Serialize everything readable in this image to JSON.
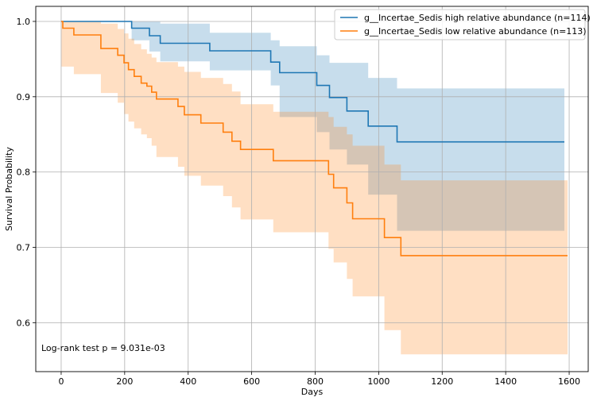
{
  "chart_data": {
    "type": "line",
    "subtype": "kaplan-meier",
    "title": "",
    "xlabel": "Days",
    "ylabel": "Survival Probability",
    "xlim": [
      -80,
      1660
    ],
    "ylim": [
      0.535,
      1.02
    ],
    "xticks": [
      0,
      200,
      400,
      600,
      800,
      1000,
      1200,
      1400,
      1600
    ],
    "yticks": [
      0.6,
      0.7,
      0.8,
      0.9,
      1.0
    ],
    "xtick_labels": [
      "0",
      "200",
      "400",
      "600",
      "800",
      "1000",
      "1200",
      "1400",
      "1600"
    ],
    "ytick_labels": [
      "0.6",
      "0.7",
      "0.8",
      "0.9",
      "1.0"
    ],
    "grid": true,
    "legend_position": "top-right",
    "annotation": "Log-rank test p = 9.031e-03",
    "series": [
      {
        "name": "g__Incertae_Sedis high relative abundance (n=114)",
        "color": "#1f77b4",
        "band_color": "#1f77b4",
        "x_end": 1585,
        "steps": [
          [
            0,
            1.0
          ],
          [
            222,
            0.991
          ],
          [
            278,
            0.981
          ],
          [
            312,
            0.971
          ],
          [
            468,
            0.961
          ],
          [
            660,
            0.946
          ],
          [
            688,
            0.932
          ],
          [
            805,
            0.915
          ],
          [
            845,
            0.899
          ],
          [
            900,
            0.881
          ],
          [
            967,
            0.861
          ],
          [
            1058,
            0.84
          ]
        ],
        "ci_lower": [
          [
            0,
            1.0
          ],
          [
            222,
            0.975
          ],
          [
            278,
            0.96
          ],
          [
            312,
            0.947
          ],
          [
            468,
            0.935
          ],
          [
            660,
            0.915
          ],
          [
            688,
            0.873
          ],
          [
            805,
            0.853
          ],
          [
            845,
            0.83
          ],
          [
            900,
            0.81
          ],
          [
            967,
            0.77
          ],
          [
            1058,
            0.722
          ]
        ],
        "ci_upper": [
          [
            0,
            1.0
          ],
          [
            222,
            1.0
          ],
          [
            278,
            1.0
          ],
          [
            312,
            0.997
          ],
          [
            468,
            0.985
          ],
          [
            660,
            0.975
          ],
          [
            688,
            0.967
          ],
          [
            805,
            0.955
          ],
          [
            845,
            0.945
          ],
          [
            900,
            0.945
          ],
          [
            967,
            0.925
          ],
          [
            1058,
            0.911
          ]
        ]
      },
      {
        "name": "g__Incertae_Sedis low relative abundance (n=113)",
        "color": "#ff7f0e",
        "band_color": "#ff7f0e",
        "x_end": 1595,
        "steps": [
          [
            0,
            1.0
          ],
          [
            5,
            0.991
          ],
          [
            40,
            0.982
          ],
          [
            125,
            0.964
          ],
          [
            178,
            0.955
          ],
          [
            198,
            0.945
          ],
          [
            212,
            0.936
          ],
          [
            230,
            0.927
          ],
          [
            252,
            0.918
          ],
          [
            270,
            0.914
          ],
          [
            285,
            0.906
          ],
          [
            300,
            0.897
          ],
          [
            368,
            0.887
          ],
          [
            388,
            0.876
          ],
          [
            440,
            0.865
          ],
          [
            510,
            0.853
          ],
          [
            538,
            0.841
          ],
          [
            565,
            0.83
          ],
          [
            668,
            0.815
          ],
          [
            842,
            0.797
          ],
          [
            858,
            0.779
          ],
          [
            900,
            0.759
          ],
          [
            918,
            0.738
          ],
          [
            1018,
            0.713
          ],
          [
            1070,
            0.689
          ]
        ],
        "ci_lower": [
          [
            0,
            0.94
          ],
          [
            40,
            0.93
          ],
          [
            125,
            0.905
          ],
          [
            178,
            0.892
          ],
          [
            198,
            0.877
          ],
          [
            212,
            0.867
          ],
          [
            230,
            0.858
          ],
          [
            252,
            0.85
          ],
          [
            270,
            0.845
          ],
          [
            285,
            0.835
          ],
          [
            300,
            0.82
          ],
          [
            368,
            0.807
          ],
          [
            388,
            0.795
          ],
          [
            440,
            0.782
          ],
          [
            510,
            0.768
          ],
          [
            538,
            0.753
          ],
          [
            565,
            0.737
          ],
          [
            668,
            0.72
          ],
          [
            842,
            0.698
          ],
          [
            858,
            0.68
          ],
          [
            900,
            0.658
          ],
          [
            918,
            0.635
          ],
          [
            1018,
            0.59
          ],
          [
            1070,
            0.558
          ]
        ],
        "ci_upper": [
          [
            0,
            1.0
          ],
          [
            125,
            0.997
          ],
          [
            178,
            0.99
          ],
          [
            198,
            0.984
          ],
          [
            212,
            0.977
          ],
          [
            230,
            0.97
          ],
          [
            252,
            0.963
          ],
          [
            270,
            0.957
          ],
          [
            285,
            0.952
          ],
          [
            300,
            0.946
          ],
          [
            368,
            0.94
          ],
          [
            388,
            0.933
          ],
          [
            440,
            0.925
          ],
          [
            510,
            0.917
          ],
          [
            538,
            0.907
          ],
          [
            565,
            0.89
          ],
          [
            668,
            0.88
          ],
          [
            842,
            0.873
          ],
          [
            858,
            0.86
          ],
          [
            900,
            0.85
          ],
          [
            918,
            0.835
          ],
          [
            1018,
            0.81
          ],
          [
            1070,
            0.789
          ]
        ]
      }
    ]
  }
}
